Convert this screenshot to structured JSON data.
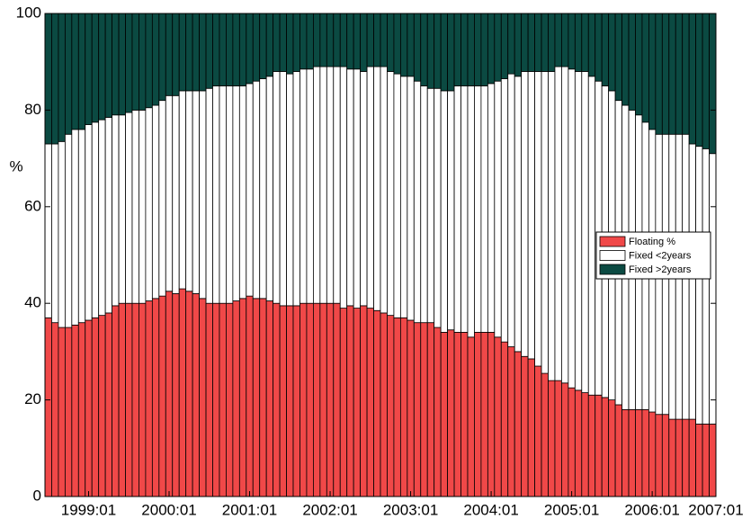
{
  "chart_data": {
    "type": "stacked-bar",
    "y_label": "%",
    "categories": [
      null,
      null,
      null,
      null,
      null,
      null,
      null,
      null,
      null,
      null,
      null,
      null,
      null,
      null,
      null,
      null,
      null,
      null,
      null,
      null,
      null,
      null,
      null,
      null,
      null,
      null,
      null,
      null,
      null,
      null,
      null,
      null,
      null,
      null,
      null,
      null,
      null,
      null,
      null,
      null,
      null,
      null,
      null,
      null,
      null,
      null,
      null,
      null,
      null,
      null,
      null,
      null,
      null,
      null,
      null,
      null,
      null,
      null,
      null,
      null,
      null,
      null,
      null,
      null,
      null,
      null,
      null,
      null,
      null,
      null,
      null,
      null,
      null,
      null,
      null,
      null,
      null,
      null,
      null,
      null,
      null,
      null,
      null,
      null,
      null,
      null,
      null,
      null,
      null,
      null,
      null,
      null,
      null,
      null,
      null,
      null,
      null,
      null,
      null,
      null
    ],
    "series": [
      {
        "name": "Floating %",
        "color": "#f04848",
        "values": [
          37,
          36,
          35,
          35,
          35.5,
          36,
          36.5,
          37,
          37.5,
          38,
          39.5,
          40,
          40,
          40,
          40,
          40.5,
          41,
          41.5,
          42.5,
          42,
          43,
          42.5,
          42,
          41,
          40,
          40,
          40,
          40,
          40.5,
          41,
          41.5,
          41,
          41,
          40.5,
          40,
          39.5,
          39.5,
          39.5,
          40,
          40,
          40,
          40,
          40,
          40,
          39,
          39.5,
          39,
          39.5,
          39,
          38.5,
          38,
          37.5,
          37,
          37,
          36.5,
          36,
          36,
          36,
          35,
          34,
          34.5,
          34,
          34,
          33,
          34,
          34,
          34,
          33,
          32,
          31,
          30,
          29,
          28.5,
          27,
          25.5,
          24,
          24,
          23.5,
          22.5,
          22,
          21.5,
          21,
          21,
          20.5,
          20,
          19,
          18,
          18,
          18,
          18,
          17.5,
          17,
          17,
          16,
          16,
          16,
          16,
          15,
          15,
          15
        ]
      },
      {
        "name": "Fixed <2years",
        "color": "#ffffff",
        "values": [
          36,
          37,
          38.5,
          40,
          40.5,
          40,
          40.5,
          40.5,
          40.5,
          40.5,
          39.5,
          39,
          39.5,
          40,
          40,
          40,
          40,
          40.5,
          40.5,
          41,
          41,
          41.5,
          42,
          43,
          44.5,
          45,
          45,
          45,
          44.5,
          44,
          44,
          45,
          45.5,
          46.5,
          48,
          48.5,
          48,
          48.5,
          48.5,
          48.5,
          49,
          49,
          49,
          49,
          50,
          49,
          49.5,
          48.5,
          50,
          50.5,
          51,
          50.5,
          50.5,
          50,
          50.5,
          50,
          49,
          48.5,
          49.5,
          50,
          49.5,
          51,
          51,
          52,
          51,
          51,
          51.5,
          53,
          54.5,
          56.5,
          57,
          59,
          59.5,
          61,
          62.5,
          64,
          65,
          65.5,
          66,
          66,
          66.5,
          66,
          65,
          64.5,
          64,
          63,
          63,
          62,
          61,
          59.5,
          58.5,
          58,
          58,
          59,
          59,
          59,
          57,
          57.5,
          57,
          56
        ]
      },
      {
        "name": "Fixed >2years",
        "color": "#0b4a42",
        "values": [
          27,
          27,
          26.5,
          25,
          24,
          24,
          23,
          22.5,
          22,
          21.5,
          21,
          21,
          20.5,
          20,
          20,
          19.5,
          19,
          18,
          17,
          17,
          16,
          16,
          16,
          16,
          15.5,
          15,
          15,
          15,
          15,
          15,
          14.5,
          14,
          13.5,
          13,
          12,
          12,
          12.5,
          12,
          11.5,
          11.5,
          11,
          11,
          11,
          11,
          11,
          11.5,
          11.5,
          12,
          11,
          11,
          11,
          12,
          12.5,
          13,
          13,
          14,
          15,
          15.5,
          15.5,
          16,
          16,
          15,
          15,
          15,
          15,
          15,
          14.5,
          14,
          13.5,
          12.5,
          13,
          12,
          12,
          12,
          12,
          12,
          11,
          11,
          11.5,
          12,
          12,
          13,
          14,
          15,
          16,
          18,
          19,
          20,
          21,
          22.5,
          24,
          25,
          25,
          25,
          25,
          25,
          27,
          27.5,
          28,
          29
        ]
      }
    ],
    "xlim": [
      0,
      100
    ],
    "xticks": [
      {
        "value": 6.5,
        "label": "1999:01"
      },
      {
        "value": 18.5,
        "label": "2000:01"
      },
      {
        "value": 30.5,
        "label": "2001:01"
      },
      {
        "value": 42.5,
        "label": "2002:01"
      },
      {
        "value": 54.5,
        "label": "2003:01"
      },
      {
        "value": 66.5,
        "label": "2004:01"
      },
      {
        "value": 78.5,
        "label": "2005:01"
      },
      {
        "value": 90.5,
        "label": "2006:01"
      },
      {
        "value": 100,
        "label": "2007:01"
      }
    ],
    "ylim": [
      0,
      100
    ],
    "yticks": [
      0,
      20,
      40,
      60,
      80,
      100
    ],
    "grid": false,
    "legend": "right"
  }
}
